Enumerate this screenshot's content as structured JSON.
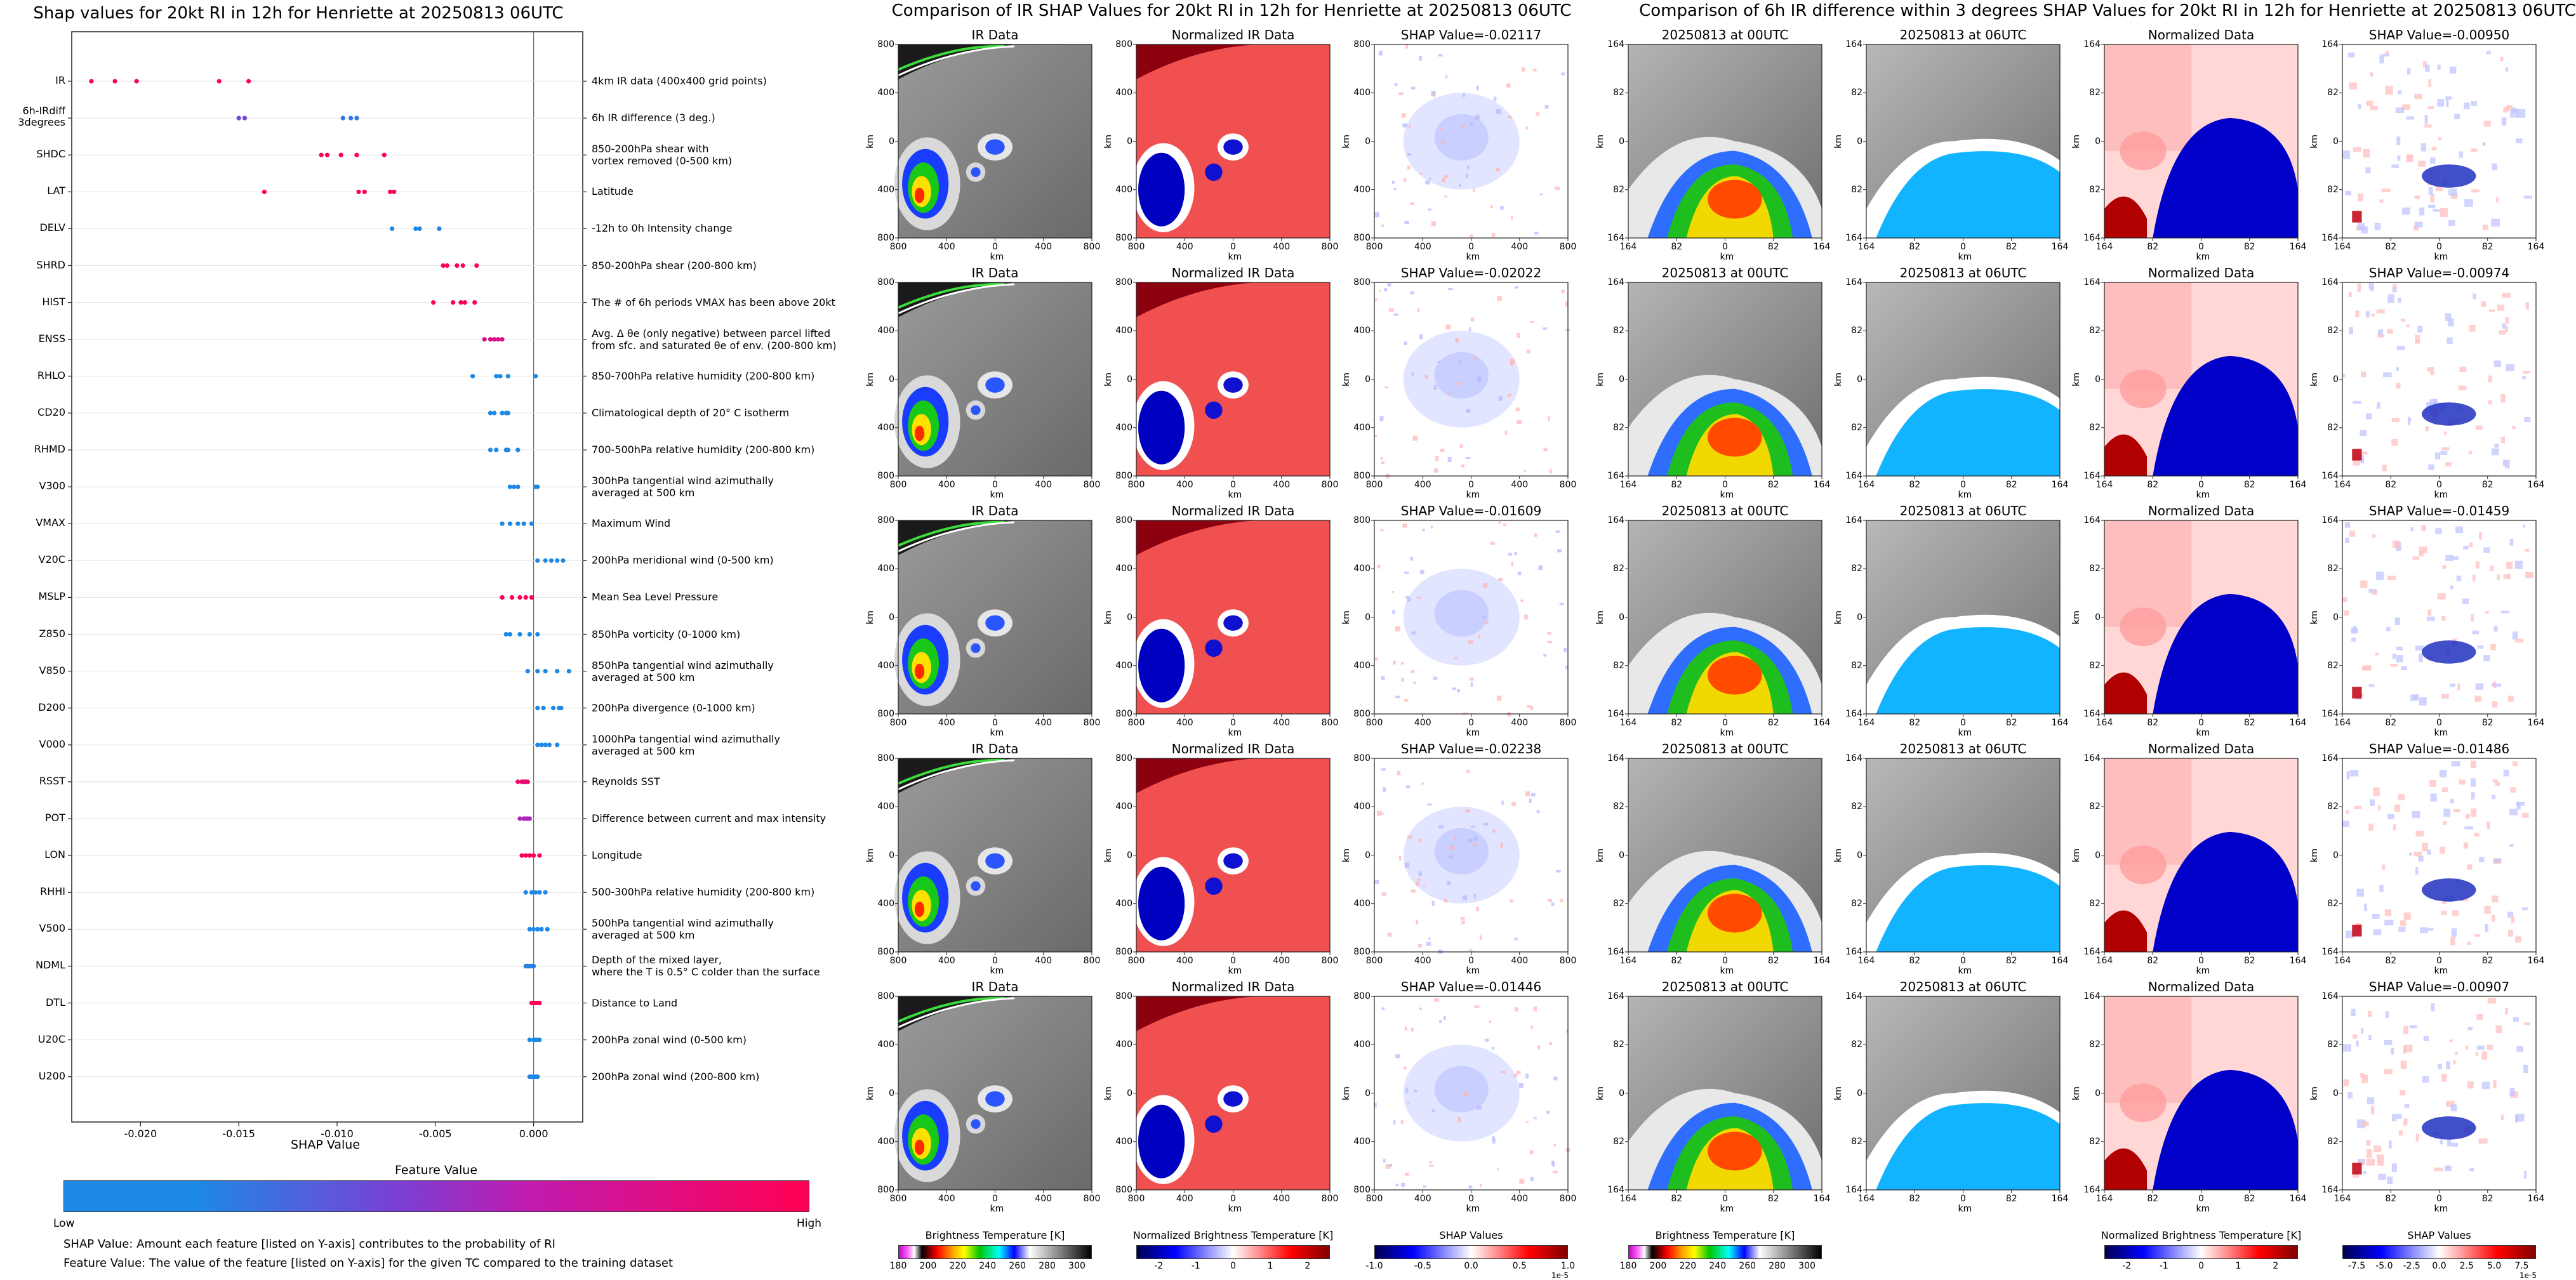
{
  "beeswarm": {
    "title": "Shap values for 20kt RI in 12h for Henriette at 20250813 06UTC",
    "xlabel": "SHAP Value",
    "colorbar_title": "Feature Value",
    "colorbar_low": "Low",
    "colorbar_high": "High",
    "notes": [
      "SHAP Value: Amount each feature [listed on Y-axis] contributes to the probability of RI",
      "Feature Value: The value of the feature [listed on Y-axis] for the given TC compared to the training dataset"
    ],
    "colors": {
      "low": "#1e88e5",
      "high": "#ff0052"
    }
  },
  "chart_data": {
    "type": "scatter",
    "xlim": [
      -0.0235,
      0.0025
    ],
    "xticks": [
      "-0.020",
      "-0.015",
      "-0.010",
      "-0.005",
      "0.000"
    ],
    "xtick_values": [
      -0.02,
      -0.015,
      -0.01,
      -0.005,
      0.0
    ],
    "features": [
      {
        "code": "IR",
        "desc": "4km IR data (400x400 grid points)",
        "points": [
          [
            -0.0225,
            1
          ],
          [
            -0.0213,
            1
          ],
          [
            -0.0202,
            1
          ],
          [
            -0.016,
            1
          ],
          [
            -0.0145,
            1
          ]
        ]
      },
      {
        "code": "6h-IRdiff\n3degrees",
        "desc": "6h IR difference (3 deg.)",
        "points": [
          [
            -0.015,
            0.4
          ],
          [
            -0.0147,
            0.4
          ],
          [
            -0.0097,
            0.1
          ],
          [
            -0.0093,
            0.1
          ],
          [
            -0.009,
            0.1
          ]
        ]
      },
      {
        "code": "SHDC",
        "desc": "850-200hPa shear with\nvortex removed (0-500 km)",
        "points": [
          [
            -0.0108,
            1
          ],
          [
            -0.0105,
            1
          ],
          [
            -0.0098,
            1
          ],
          [
            -0.009,
            1
          ],
          [
            -0.0076,
            1
          ]
        ]
      },
      {
        "code": "LAT",
        "desc": "Latitude",
        "points": [
          [
            -0.0137,
            1
          ],
          [
            -0.0089,
            1
          ],
          [
            -0.0086,
            1
          ],
          [
            -0.0073,
            1
          ],
          [
            -0.0071,
            1
          ]
        ]
      },
      {
        "code": "DELV",
        "desc": "-12h to 0h Intensity change",
        "points": [
          [
            -0.0072,
            0
          ],
          [
            -0.006,
            0
          ],
          [
            -0.0058,
            0
          ],
          [
            -0.0048,
            0.05
          ]
        ]
      },
      {
        "code": "SHRD",
        "desc": "850-200hPa shear (200-800 km)",
        "points": [
          [
            -0.0046,
            1
          ],
          [
            -0.0044,
            1
          ],
          [
            -0.0039,
            1
          ],
          [
            -0.0036,
            1
          ],
          [
            -0.0029,
            1
          ]
        ]
      },
      {
        "code": "HIST",
        "desc": "The # of 6h periods VMAX has been above 20kt",
        "points": [
          [
            -0.0051,
            1
          ],
          [
            -0.0041,
            1
          ],
          [
            -0.0037,
            1
          ],
          [
            -0.0035,
            1
          ],
          [
            -0.003,
            1
          ]
        ]
      },
      {
        "code": "ENSS",
        "desc": "Avg. Δ θe (only negative) between parcel lifted\nfrom sfc. and saturated θe of env. (200-800 km)",
        "points": [
          [
            -0.0025,
            0.8
          ],
          [
            -0.0022,
            0.8
          ],
          [
            -0.002,
            0.8
          ],
          [
            -0.0018,
            0.8
          ],
          [
            -0.0016,
            0.8
          ]
        ]
      },
      {
        "code": "RHLO",
        "desc": "850-700hPa relative humidity (200-800 km)",
        "points": [
          [
            -0.0031,
            0
          ],
          [
            -0.0019,
            0
          ],
          [
            -0.0017,
            0
          ],
          [
            -0.0013,
            0
          ],
          [
            0.0001,
            0
          ]
        ]
      },
      {
        "code": "CD20",
        "desc": "Climatological depth of 20° C isotherm",
        "points": [
          [
            -0.0022,
            0
          ],
          [
            -0.002,
            0
          ],
          [
            -0.0016,
            0
          ],
          [
            -0.0014,
            0
          ],
          [
            -0.0013,
            0
          ]
        ]
      },
      {
        "code": "RHMD",
        "desc": "700-500hPa relative humidity (200-800 km)",
        "points": [
          [
            -0.0022,
            0
          ],
          [
            -0.0019,
            0
          ],
          [
            -0.0014,
            0
          ],
          [
            -0.0013,
            0
          ],
          [
            -0.0008,
            0
          ]
        ]
      },
      {
        "code": "V300",
        "desc": "300hPa tangential wind azimuthally\naveraged at 500 km",
        "points": [
          [
            -0.0012,
            0
          ],
          [
            -0.001,
            0
          ],
          [
            -0.0008,
            0
          ],
          [
            0.0001,
            0
          ],
          [
            0.0002,
            0
          ]
        ]
      },
      {
        "code": "VMAX",
        "desc": "Maximum Wind",
        "points": [
          [
            -0.0016,
            0
          ],
          [
            -0.0012,
            0
          ],
          [
            -0.0008,
            0
          ],
          [
            -0.0005,
            0
          ],
          [
            -0.0001,
            0
          ]
        ]
      },
      {
        "code": "V20C",
        "desc": "200hPa meridional wind (0-500 km)",
        "points": [
          [
            0.0002,
            0
          ],
          [
            0.0006,
            0
          ],
          [
            0.0009,
            0
          ],
          [
            0.0012,
            0
          ],
          [
            0.0015,
            0
          ]
        ]
      },
      {
        "code": "MSLP",
        "desc": "Mean Sea Level Pressure",
        "points": [
          [
            -0.0016,
            1
          ],
          [
            -0.0011,
            1
          ],
          [
            -0.0007,
            1
          ],
          [
            -0.0004,
            1
          ],
          [
            -0.0001,
            1
          ]
        ]
      },
      {
        "code": "Z850",
        "desc": "850hPa vorticity (0-1000 km)",
        "points": [
          [
            -0.0014,
            0
          ],
          [
            -0.0012,
            0
          ],
          [
            -0.0007,
            0
          ],
          [
            -0.0002,
            0
          ],
          [
            0.0002,
            0
          ]
        ]
      },
      {
        "code": "V850",
        "desc": "850hPa tangential wind azimuthally\naveraged at 500 km",
        "points": [
          [
            -0.0003,
            0
          ],
          [
            0.0002,
            0
          ],
          [
            0.0006,
            0
          ],
          [
            0.0012,
            0
          ],
          [
            0.0018,
            0
          ]
        ]
      },
      {
        "code": "D200",
        "desc": "200hPa divergence (0-1000 km)",
        "points": [
          [
            0.0002,
            0
          ],
          [
            0.0005,
            0
          ],
          [
            0.001,
            0
          ],
          [
            0.0013,
            0
          ],
          [
            0.0014,
            0
          ]
        ]
      },
      {
        "code": "V000",
        "desc": "1000hPa tangential wind azimuthally\naveraged at 500 km",
        "points": [
          [
            0.0002,
            0
          ],
          [
            0.0004,
            0
          ],
          [
            0.0006,
            0
          ],
          [
            0.0008,
            0
          ],
          [
            0.0012,
            0
          ]
        ]
      },
      {
        "code": "RSST",
        "desc": "Reynolds SST",
        "points": [
          [
            -0.0008,
            0.9
          ],
          [
            -0.0006,
            0.9
          ],
          [
            -0.0005,
            0.9
          ],
          [
            -0.0004,
            0.9
          ],
          [
            -0.0003,
            0.9
          ]
        ]
      },
      {
        "code": "POT",
        "desc": "Difference between current and max intensity",
        "points": [
          [
            -0.0007,
            0.6
          ],
          [
            -0.0005,
            0.6
          ],
          [
            -0.0004,
            0.6
          ],
          [
            -0.0003,
            0.6
          ],
          [
            -0.0002,
            0.6
          ]
        ]
      },
      {
        "code": "LON",
        "desc": "Longitude",
        "points": [
          [
            -0.0006,
            1
          ],
          [
            -0.0004,
            1
          ],
          [
            -0.0002,
            1
          ],
          [
            0.0,
            1
          ],
          [
            0.0003,
            1
          ]
        ]
      },
      {
        "code": "RHHI",
        "desc": "500-300hPa relative humidity (200-800 km)",
        "points": [
          [
            -0.0004,
            0
          ],
          [
            -0.0001,
            0
          ],
          [
            0.0001,
            0
          ],
          [
            0.0003,
            0
          ],
          [
            0.0006,
            0
          ]
        ]
      },
      {
        "code": "V500",
        "desc": "500hPa tangential wind azimuthally\naveraged at 500 km",
        "points": [
          [
            -0.0002,
            0
          ],
          [
            0.0,
            0
          ],
          [
            0.0002,
            0
          ],
          [
            0.0004,
            0
          ],
          [
            0.0007,
            0
          ]
        ]
      },
      {
        "code": "NDML",
        "desc": "Depth of the mixed layer,\nwhere the T is 0.5° C colder than the surface",
        "points": [
          [
            -0.0004,
            0.05
          ],
          [
            -0.0003,
            0.05
          ],
          [
            -0.0002,
            0.05
          ],
          [
            -0.0001,
            0.05
          ],
          [
            0.0,
            0.05
          ]
        ]
      },
      {
        "code": "DTL",
        "desc": "Distance to Land",
        "points": [
          [
            -0.0001,
            1
          ],
          [
            0.0,
            1
          ],
          [
            0.0001,
            1
          ],
          [
            0.0002,
            1
          ],
          [
            0.0003,
            1
          ]
        ]
      },
      {
        "code": "U20C",
        "desc": "200hPa zonal wind (0-500 km)",
        "points": [
          [
            -0.0002,
            0
          ],
          [
            0.0,
            0
          ],
          [
            0.0001,
            0
          ],
          [
            0.0002,
            0
          ],
          [
            0.0003,
            0
          ]
        ]
      },
      {
        "code": "U200",
        "desc": "200hPa zonal wind (200-800 km)",
        "points": [
          [
            -0.0002,
            0
          ],
          [
            -0.0001,
            0
          ],
          [
            0.0,
            0
          ],
          [
            0.0001,
            0
          ],
          [
            0.0002,
            0
          ]
        ]
      }
    ]
  },
  "ir_section": {
    "title": "Comparison of IR SHAP Values for 20kt RI in 12h for Henriette at 20250813 06UTC",
    "col_titles": [
      "IR Data",
      "Normalized IR Data"
    ],
    "shap_prefix": "SHAP Value=",
    "shap_values": [
      "-0.02117",
      "-0.02022",
      "-0.01609",
      "-0.02238",
      "-0.01446"
    ],
    "ticks": [
      "800",
      "400",
      "0",
      "400",
      "800"
    ],
    "axis_label": "km",
    "colorbars": [
      {
        "label": "Brightness Temperature [K]",
        "ticks": [
          "180",
          "200",
          "220",
          "240",
          "260",
          "280",
          "300"
        ],
        "lim": [
          180,
          310
        ]
      },
      {
        "label": "Normalized Brightness Temperature [K]",
        "ticks": [
          "-2",
          "-1",
          "0",
          "1",
          "2"
        ],
        "lim": [
          -2.6,
          2.6
        ]
      },
      {
        "label": "SHAP Values",
        "ticks": [
          "-1.0",
          "-0.5",
          "0.0",
          "0.5",
          "1.0"
        ],
        "lim": [
          -1.0,
          1.0
        ],
        "offset": "1e-5"
      }
    ]
  },
  "diff_section": {
    "title": "Comparison of 6h IR difference within 3 degrees SHAP Values for 20kt RI in 12h for Henriette at 20250813 06UTC",
    "col_titles": [
      "20250813 at 00UTC",
      "20250813 at 06UTC",
      "Normalized Data"
    ],
    "shap_prefix": "SHAP Value=",
    "shap_values": [
      "-0.00950",
      "-0.00974",
      "-0.01459",
      "-0.01486",
      "-0.00907"
    ],
    "ticks": [
      "164",
      "82",
      "0",
      "82",
      "164"
    ],
    "axis_label": "km",
    "colorbars": [
      {
        "label": "Brightness Temperature [K]",
        "ticks": [
          "180",
          "200",
          "220",
          "240",
          "260",
          "280",
          "300"
        ],
        "lim": [
          180,
          310
        ]
      },
      {
        "label": "Normalized Brightness Temperature [K]",
        "ticks": [
          "-2",
          "-1",
          "0",
          "1",
          "2"
        ],
        "lim": [
          -2.6,
          2.6
        ]
      },
      {
        "label": "SHAP Values",
        "ticks": [
          "-7.5",
          "-5.0",
          "-2.5",
          "0.0",
          "2.5",
          "5.0",
          "7.5"
        ],
        "lim": [
          -8.8,
          8.8
        ],
        "offset": "1e-5"
      }
    ]
  }
}
